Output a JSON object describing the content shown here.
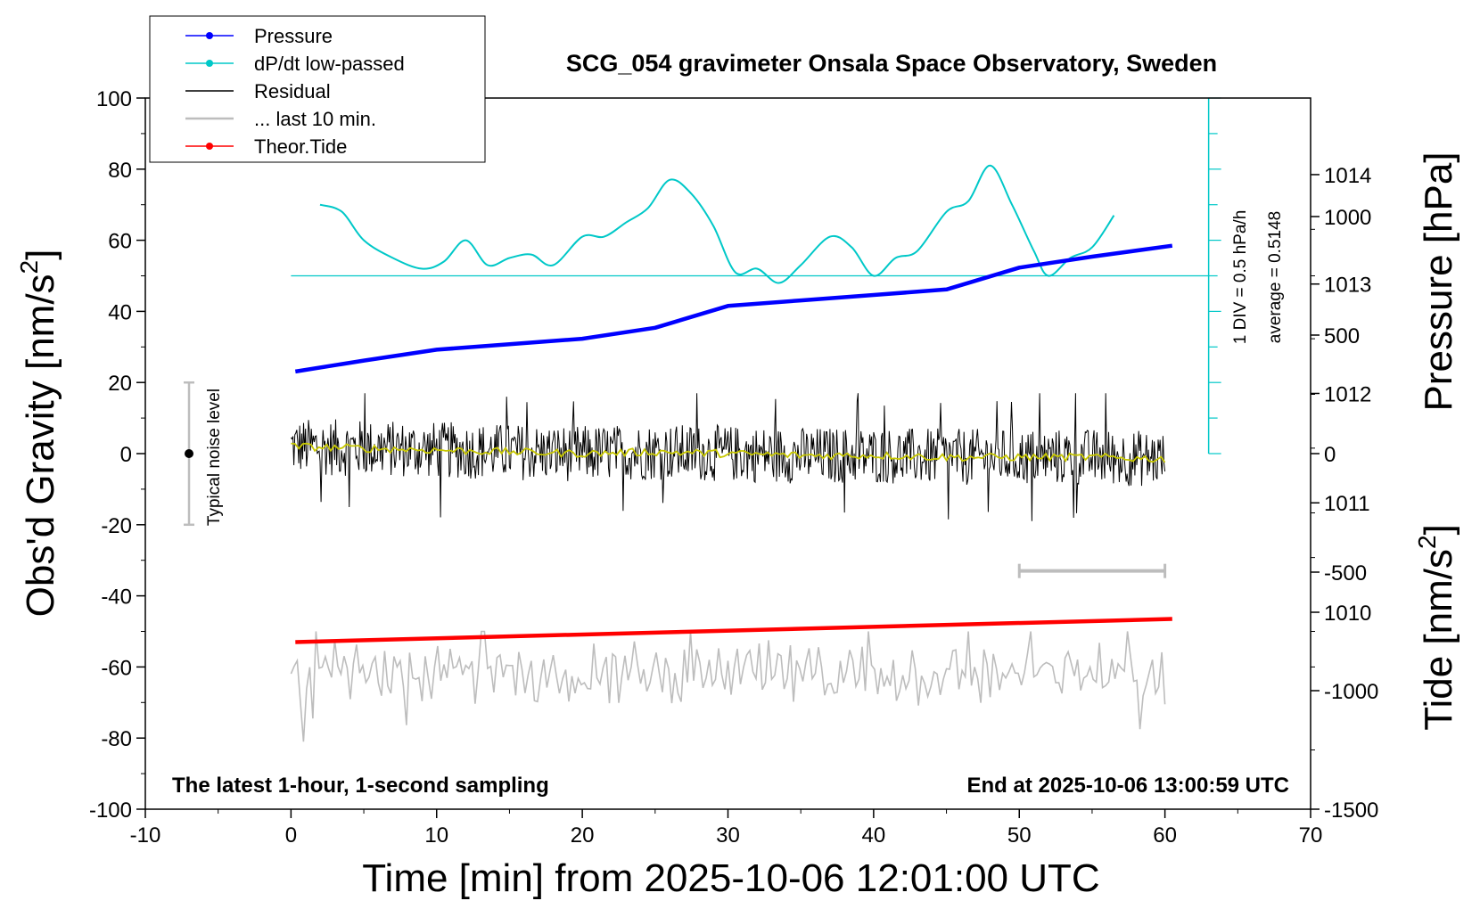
{
  "chart_data": {
    "type": "line",
    "title": "SCG_054 gravimeter Onsala Space Observatory, Sweden",
    "xlabel": "Time [min] from 2025-10-06 12:01:00 UTC",
    "ylabel_left_main": "Obs'd Gravity [nm/s",
    "ylabel_left_sup": "2",
    "ylabel_left_end": "]",
    "ylabel_right_pressure": "Pressure [hPa]",
    "ylabel_right_tide_main": "Tide [nm/s",
    "ylabel_right_tide_sup": "2",
    "ylabel_right_tide_end": "]",
    "xlim": [
      -10,
      70
    ],
    "ylim": [
      -100,
      100
    ],
    "pressure_lim": [
      1008.2,
      1014.7
    ],
    "tide_lim": [
      -1500,
      1500
    ],
    "x_ticks": [
      "-10",
      "0",
      "10",
      "20",
      "30",
      "40",
      "50",
      "60",
      "70"
    ],
    "y_ticks": [
      "100",
      "80",
      "60",
      "40",
      "20",
      "0",
      "-20",
      "-40",
      "-60",
      "-80",
      "-100"
    ],
    "pressure_ticks": [
      "1014",
      "1013",
      "1012",
      "1011",
      "1010"
    ],
    "tide_ticks": [
      "1000",
      "500",
      "0",
      "-500",
      "-1000",
      "-1500"
    ],
    "legend": [
      {
        "label": "Pressure",
        "color": "#0000ff",
        "marker": true
      },
      {
        "label": "dP/dt low-passed",
        "color": "#00c8c8",
        "marker": true
      },
      {
        "label": "Residual",
        "color": "#000000",
        "marker": false
      },
      {
        "label": "... last 10 min.",
        "color": "#bdbdbd",
        "marker": false
      },
      {
        "label": "Theor.Tide",
        "color": "#ff0000",
        "marker": true
      }
    ],
    "pressure_series": {
      "name": "Pressure",
      "color": "#0000ff",
      "x": [
        0.3,
        5,
        10,
        15,
        20,
        25,
        30,
        35,
        40,
        45,
        50,
        55,
        60.5
      ],
      "y": [
        1012.2,
        1012.3,
        1012.4,
        1012.45,
        1012.5,
        1012.6,
        1012.8,
        1012.85,
        1012.9,
        1012.95,
        1013.15,
        1013.25,
        1013.35
      ]
    },
    "dpdt_series": {
      "name": "dP/dt low-passed",
      "color": "#00c8c8",
      "x": [
        2,
        3.5,
        5,
        7,
        9,
        10.5,
        12,
        13.5,
        15,
        16.5,
        18,
        20,
        21.5,
        23,
        24.5,
        26,
        27.5,
        29,
        30.5,
        32,
        33.5,
        35,
        37,
        38.5,
        40,
        41.5,
        43,
        45,
        46.5,
        48,
        49.5,
        51,
        52,
        53.5,
        55,
        56.5
      ],
      "y": [
        70,
        68,
        60,
        55,
        52,
        54,
        60,
        53,
        55,
        56,
        53,
        61,
        61,
        65,
        69,
        77,
        73,
        64,
        51,
        52,
        48,
        53,
        61,
        58,
        50,
        55,
        57,
        68,
        71,
        81,
        70,
        57,
        50,
        55,
        58,
        67
      ]
    },
    "dpdt_baseline": 50,
    "dpdt_scale_label_1": "1 DIV = 0.5 hPa/h",
    "dpdt_scale_label_2": "average = 0.5148",
    "residual_series": {
      "name": "Residual",
      "color": "#000000",
      "x_range": [
        0,
        60
      ],
      "center": 1.0,
      "typical_amplitude": 8,
      "min": -19,
      "max": 17
    },
    "residual_smoothed": {
      "color": "#c8c800",
      "x": [
        0,
        5,
        10,
        15,
        20,
        25,
        30,
        35,
        40,
        45,
        50,
        55,
        60
      ],
      "y": [
        2,
        1.5,
        1,
        0.5,
        0,
        0.5,
        0,
        -0.5,
        -0.5,
        -1,
        -1,
        -1,
        -1.5
      ]
    },
    "last10_series": {
      "name": "... last 10 min.",
      "color": "#bdbdbd",
      "x_range": [
        0,
        60
      ],
      "center": -62,
      "typical_amplitude": 6,
      "min": -81,
      "max": -50
    },
    "last10_bar": {
      "x_range": [
        50,
        60
      ],
      "y": -33,
      "color": "#bdbdbd"
    },
    "tide_series": {
      "name": "Theor.Tide",
      "color": "#ff0000",
      "x": [
        0.3,
        60.5
      ],
      "y": [
        -53,
        -46.5
      ]
    },
    "noise_level": {
      "x": -7,
      "center": 0,
      "low": -20,
      "high": 20,
      "label": "Typical noise level"
    },
    "annotation_left": "The latest 1-hour, 1-second sampling",
    "annotation_right": "End at 2025-10-06 13:00:59 UTC"
  }
}
